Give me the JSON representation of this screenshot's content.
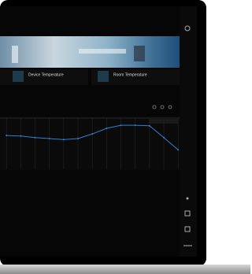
{
  "cards": [
    {
      "title": "Device Temperature"
    },
    {
      "title": "Room Temperature"
    }
  ],
  "chart_data": {
    "type": "line",
    "x": [
      0,
      1,
      2,
      3,
      4,
      5,
      6,
      7,
      8,
      9,
      10,
      11,
      12
    ],
    "xlim": [
      -0.45,
      12.1
    ],
    "series": [
      {
        "color": "#2f7fd0",
        "values": [
          66,
          65,
          62,
          60,
          58,
          60,
          69,
          80,
          86,
          86,
          85,
          62,
          38
        ]
      }
    ],
    "ylim": [
      0,
      100
    ],
    "grid": true
  }
}
